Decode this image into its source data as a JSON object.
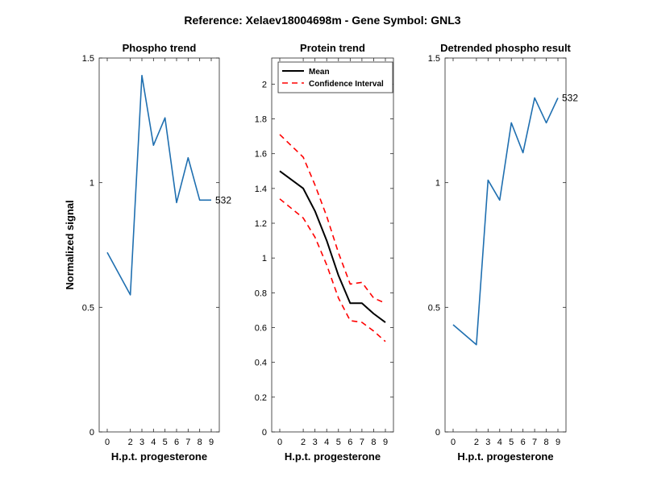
{
  "figure_title": "Reference:  Xelaev18004698m - Gene Symbol:  GNL3",
  "chart_data": [
    {
      "type": "line",
      "title": "Phospho trend",
      "xlabel": "H.p.t. progesterone",
      "ylabel": "Normalized signal",
      "x": [
        0,
        2,
        3,
        4,
        5,
        6,
        7,
        8,
        9
      ],
      "xticks": [
        "0",
        "2",
        "3",
        "4",
        "5",
        "6",
        "7",
        "8",
        "9"
      ],
      "ylim": [
        0,
        1.5
      ],
      "yticks": [
        "0",
        "0.5",
        "1",
        "1.5"
      ],
      "grid": false,
      "series": [
        {
          "values": [
            0.72,
            0.55,
            1.43,
            1.15,
            1.26,
            0.92,
            1.1,
            0.93,
            0.93
          ],
          "color": "#1f6fb0"
        }
      ],
      "end_label": "532"
    },
    {
      "type": "line",
      "title": "Protein trend",
      "xlabel": "H.p.t. progesterone",
      "ylabel": "",
      "x": [
        0,
        2,
        3,
        4,
        5,
        6,
        7,
        8,
        9
      ],
      "xticks": [
        "0",
        "2",
        "3",
        "4",
        "5",
        "6",
        "7",
        "8",
        "9"
      ],
      "ylim": [
        0,
        2.15
      ],
      "yticks": [
        "0",
        "0.2",
        "0.4",
        "0.6",
        "0.8",
        "1",
        "1.2",
        "1.4",
        "1.6",
        "1.8",
        "2"
      ],
      "grid": false,
      "legend_position": "top-left",
      "series": [
        {
          "name": "Mean",
          "values": [
            1.5,
            1.4,
            1.27,
            1.1,
            0.9,
            0.74,
            0.74,
            0.68,
            0.63
          ],
          "color": "#000000",
          "dash": "solid"
        },
        {
          "name": "Confidence Interval",
          "values": [
            1.71,
            1.58,
            1.42,
            1.24,
            1.03,
            0.85,
            0.86,
            0.77,
            0.74
          ],
          "color": "#ff0000",
          "dash": "dashed"
        },
        {
          "name": "Confidence Interval",
          "values": [
            1.34,
            1.23,
            1.12,
            0.96,
            0.77,
            0.64,
            0.63,
            0.58,
            0.52
          ],
          "color": "#ff0000",
          "dash": "dashed",
          "show_in_legend": false
        }
      ]
    },
    {
      "type": "line",
      "title": "Detrended phospho result",
      "xlabel": "H.p.t. progesterone",
      "ylabel": "",
      "x": [
        0,
        2,
        3,
        4,
        5,
        6,
        7,
        8,
        9
      ],
      "xticks": [
        "0",
        "2",
        "3",
        "4",
        "5",
        "6",
        "7",
        "8",
        "9"
      ],
      "ylim": [
        0,
        1.5
      ],
      "yticks": [
        "0",
        "0.5",
        "1",
        "1.5"
      ],
      "grid": false,
      "series": [
        {
          "values": [
            0.43,
            0.35,
            1.01,
            0.93,
            1.24,
            1.12,
            1.34,
            1.24,
            1.34
          ],
          "color": "#1f6fb0"
        }
      ],
      "end_label": "532"
    }
  ]
}
